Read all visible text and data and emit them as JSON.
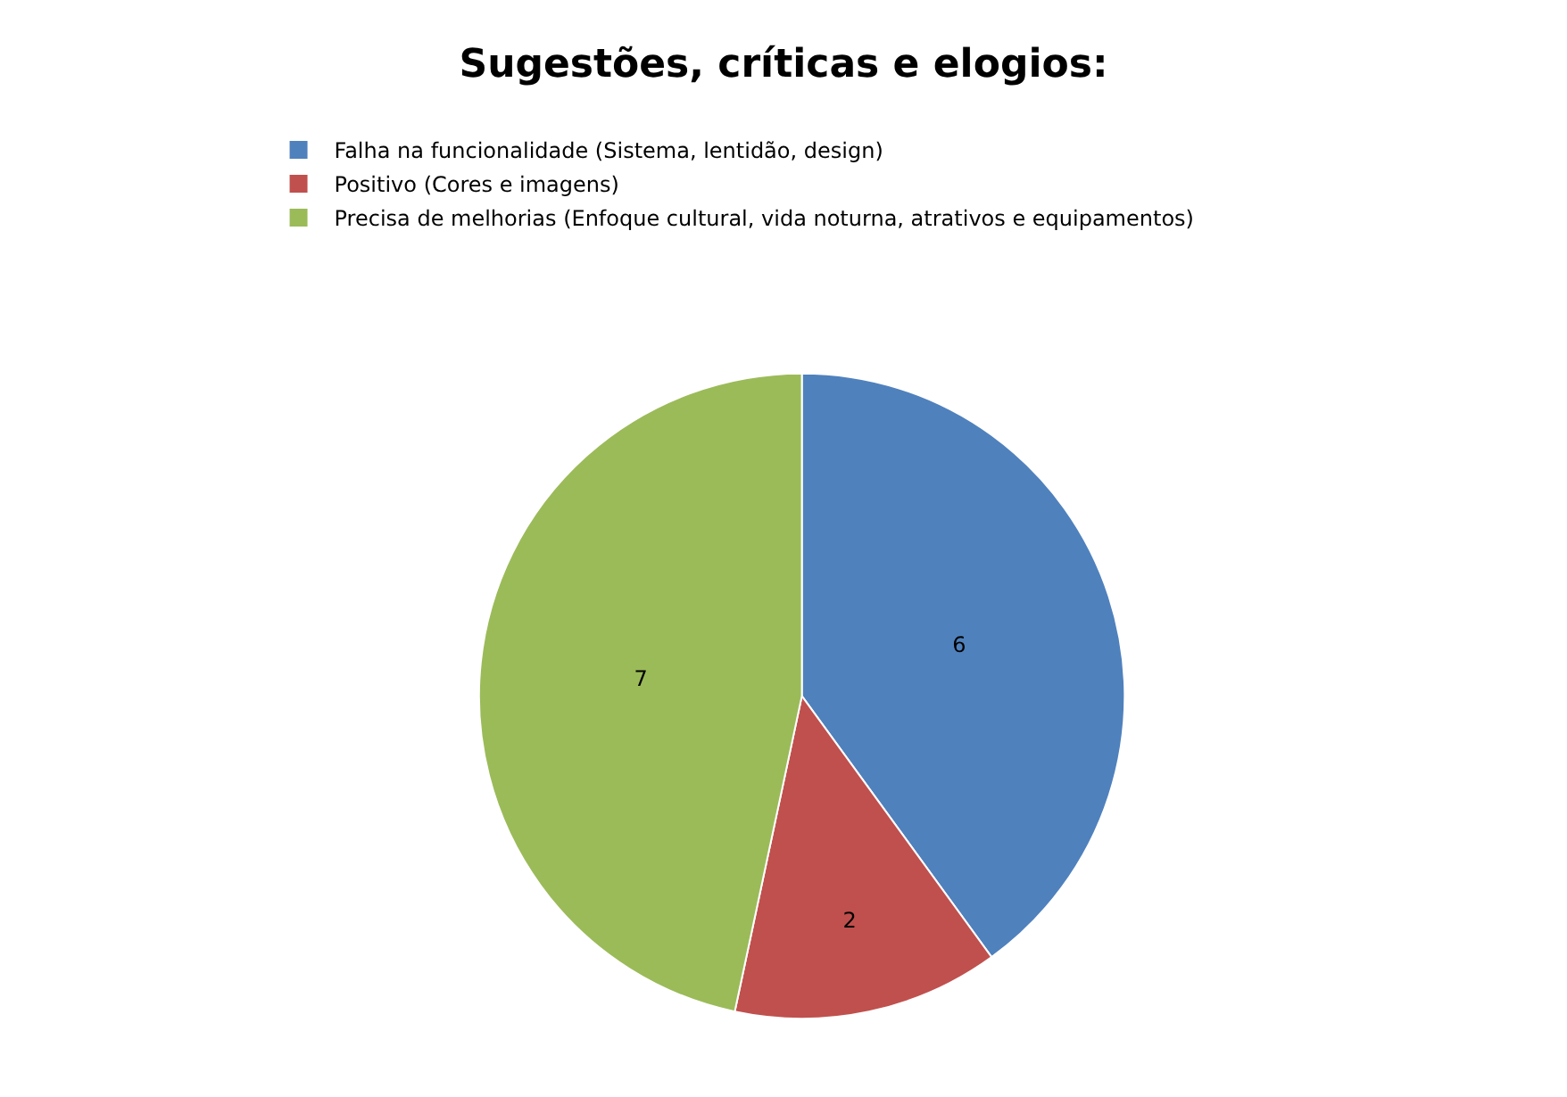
{
  "chart_data": {
    "type": "pie",
    "title": "Sugestões, críticas e elogios:",
    "categories": [
      "Falha na funcionalidade (Sistema, lentidão, design)",
      "Positivo (Cores e imagens)",
      "Precisa de melhorias (Enfoque cultural, vida noturna, atrativos e equipamentos)"
    ],
    "values": [
      6,
      2,
      7
    ],
    "colors": [
      "#4f81bd",
      "#c0504d",
      "#9bbb59"
    ],
    "data_labels": true,
    "legend": "top left"
  }
}
